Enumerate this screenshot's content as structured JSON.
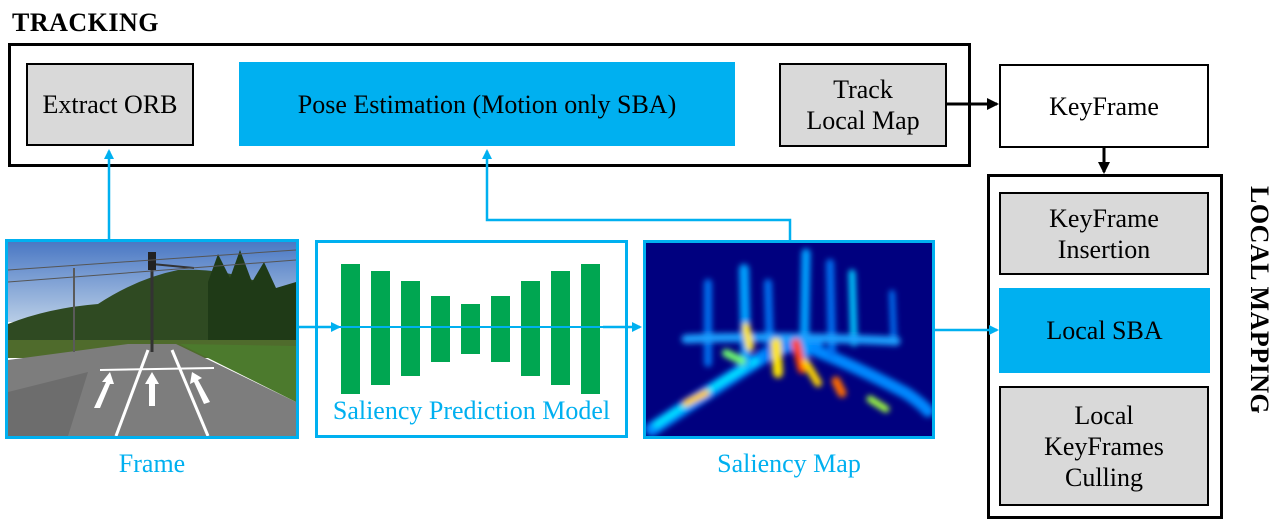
{
  "tracking": {
    "title": "TRACKING",
    "extract_orb": "Extract ORB",
    "pose_estimation": "Pose Estimation (Motion only SBA)",
    "track_local_map": "Track\nLocal Map"
  },
  "keyframe": "KeyFrame",
  "local_mapping": {
    "title": "LOCAL MAPPING",
    "keyframe_insertion": "KeyFrame\nInsertion",
    "local_sba": "Local SBA",
    "local_keyframes_culling": "Local\nKeyFrames\nCulling"
  },
  "frame_label": "Frame",
  "saliency_model_label": "Saliency Prediction Model",
  "saliency_map_label": "Saliency Map",
  "colors": {
    "accent_cyan": "#00b0f0",
    "grey_box": "#d9d9d9",
    "network_green": "#00a651",
    "heatmap_background": "#00007f"
  }
}
